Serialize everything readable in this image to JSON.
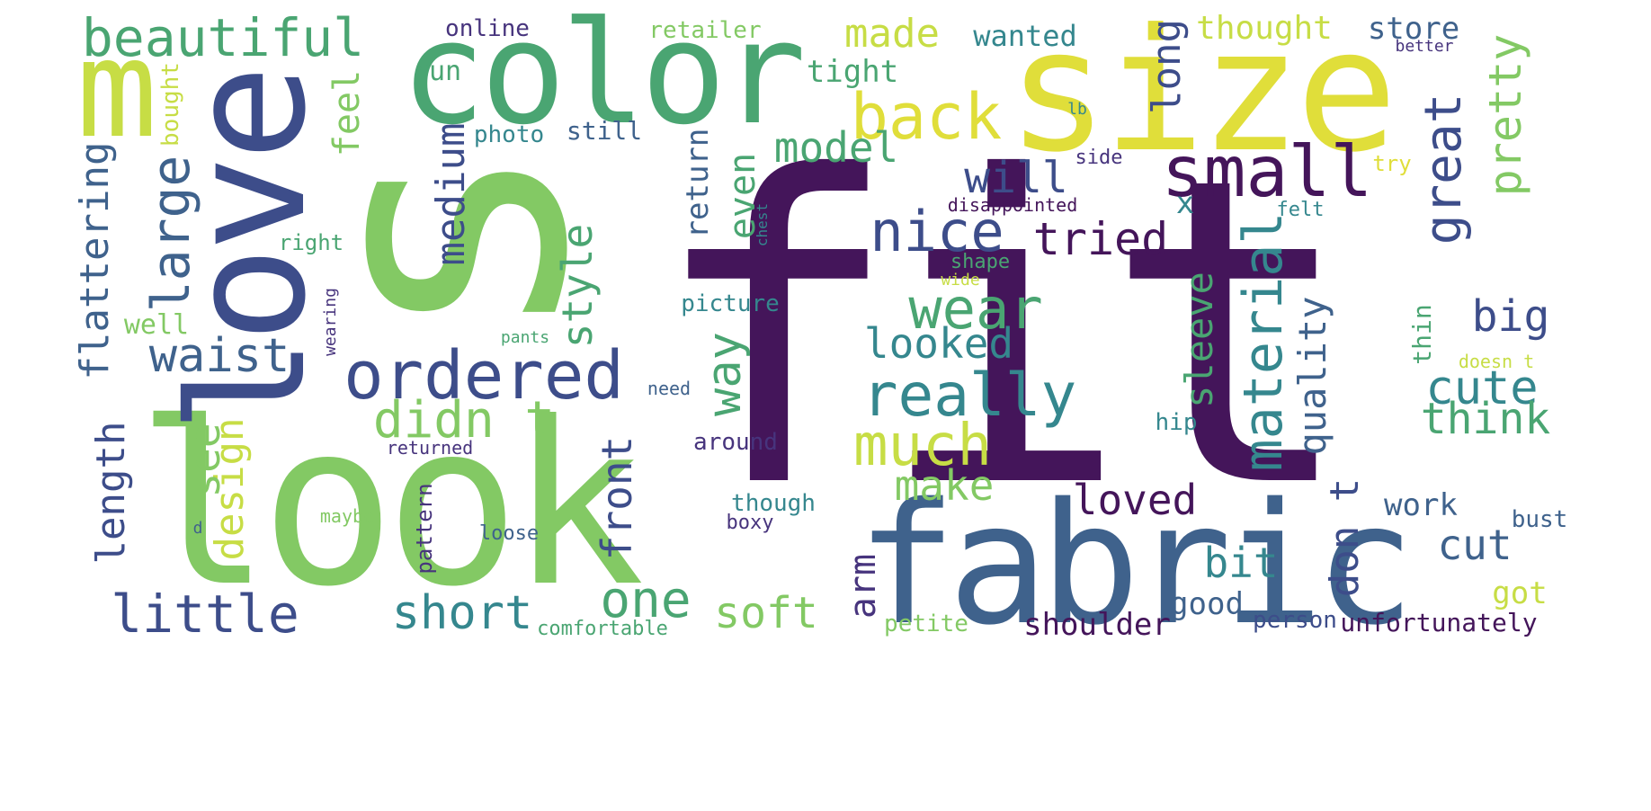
{
  "colors": {
    "dark_purple": "#44155a",
    "indigo": "#3d4d8a",
    "slate_blue": "#3f628c",
    "teal": "#35878e",
    "green": "#4aa572",
    "light_green": "#83c964",
    "yellow_green": "#c7dd45",
    "yellow": "#e0de3a",
    "mid_purple": "#47347d"
  },
  "words": [
    {
      "text": "fit",
      "color": "#44155a"
    },
    {
      "text": "s",
      "color": "#83c964"
    },
    {
      "text": "look",
      "color": "#83c964"
    },
    {
      "text": "size",
      "color": "#e0de3a"
    },
    {
      "text": "love",
      "color": "#3d4d8a"
    },
    {
      "text": "color",
      "color": "#4aa572"
    },
    {
      "text": "fabric",
      "color": "#3f628c"
    },
    {
      "text": "m",
      "color": "#c7dd45"
    },
    {
      "text": "small",
      "color": "#44155a"
    },
    {
      "text": "ordered",
      "color": "#3d4d8a"
    },
    {
      "text": "really",
      "color": "#35878e"
    },
    {
      "text": "back",
      "color": "#e0de3a"
    },
    {
      "text": "beautiful",
      "color": "#4aa572"
    },
    {
      "text": "little",
      "color": "#3d4d8a"
    },
    {
      "text": "much",
      "color": "#c7dd45"
    },
    {
      "text": "nice",
      "color": "#3d4d8a"
    },
    {
      "text": "wear",
      "color": "#4aa572"
    },
    {
      "text": "didn t",
      "color": "#83c964"
    },
    {
      "text": "material",
      "color": "#35878e"
    },
    {
      "text": "one",
      "color": "#4aa572"
    },
    {
      "text": "large",
      "color": "#3f628c"
    },
    {
      "text": "will",
      "color": "#3d4d8a"
    },
    {
      "text": "tried",
      "color": "#44155a"
    },
    {
      "text": "short",
      "color": "#35878e"
    },
    {
      "text": "waist",
      "color": "#3f628c"
    },
    {
      "text": "cute",
      "color": "#35878e"
    },
    {
      "text": "soft",
      "color": "#83c964"
    },
    {
      "text": "made",
      "color": "#c7dd45"
    },
    {
      "text": "model",
      "color": "#4aa572"
    },
    {
      "text": "looked",
      "color": "#35878e"
    },
    {
      "text": "great",
      "color": "#3d4d8a"
    },
    {
      "text": "pretty",
      "color": "#83c964"
    },
    {
      "text": "think",
      "color": "#4aa572"
    },
    {
      "text": "big",
      "color": "#3d4d8a"
    },
    {
      "text": "style",
      "color": "#4aa572"
    },
    {
      "text": "way",
      "color": "#4aa572"
    },
    {
      "text": "flattering",
      "color": "#3f628c"
    },
    {
      "text": "medium",
      "color": "#3d4d8a"
    },
    {
      "text": "make",
      "color": "#83c964"
    },
    {
      "text": "loved",
      "color": "#44155a"
    },
    {
      "text": "front",
      "color": "#3d4d8a"
    },
    {
      "text": "length",
      "color": "#3d4d8a"
    },
    {
      "text": "design",
      "color": "#c7dd45"
    },
    {
      "text": "see",
      "color": "#83c964"
    },
    {
      "text": "sleeve",
      "color": "#4aa572"
    },
    {
      "text": "quality",
      "color": "#3f628c"
    },
    {
      "text": "don t",
      "color": "#3d4d8a"
    },
    {
      "text": "bit",
      "color": "#35878e"
    },
    {
      "text": "cut",
      "color": "#3f628c"
    },
    {
      "text": "long",
      "color": "#3d4d8a"
    },
    {
      "text": "arm",
      "color": "#47347d"
    },
    {
      "text": "even",
      "color": "#4aa572"
    },
    {
      "text": "feel",
      "color": "#83c964"
    },
    {
      "text": "shoulder",
      "color": "#44155a"
    },
    {
      "text": "tight",
      "color": "#4aa572"
    },
    {
      "text": "wanted",
      "color": "#35878e"
    },
    {
      "text": "thought",
      "color": "#c7dd45"
    },
    {
      "text": "store",
      "color": "#3f628c"
    },
    {
      "text": "return",
      "color": "#3f628c"
    },
    {
      "text": "work",
      "color": "#3f628c"
    },
    {
      "text": "got",
      "color": "#c7dd45"
    },
    {
      "text": "good",
      "color": "#3f628c"
    },
    {
      "text": "unfortunately",
      "color": "#44155a"
    },
    {
      "text": "x",
      "color": "#35878e"
    },
    {
      "text": "run",
      "color": "#4aa572"
    },
    {
      "text": "bought",
      "color": "#c7dd45"
    },
    {
      "text": "well",
      "color": "#83c964"
    },
    {
      "text": "retailer",
      "color": "#83c964"
    },
    {
      "text": "online",
      "color": "#47347d"
    },
    {
      "text": "still",
      "color": "#3f628c"
    },
    {
      "text": "photo",
      "color": "#35878e"
    },
    {
      "text": "picture",
      "color": "#35878e"
    },
    {
      "text": "though",
      "color": "#35878e"
    },
    {
      "text": "around",
      "color": "#47347d"
    },
    {
      "text": "bust",
      "color": "#3f628c"
    },
    {
      "text": "thin",
      "color": "#4aa572"
    },
    {
      "text": "hip",
      "color": "#35878e"
    },
    {
      "text": "person",
      "color": "#3d4d8a"
    },
    {
      "text": "petite",
      "color": "#83c964"
    },
    {
      "text": "comfortable",
      "color": "#4aa572"
    },
    {
      "text": "pattern",
      "color": "#47347d"
    },
    {
      "text": "loose",
      "color": "#3f628c"
    },
    {
      "text": "boxy",
      "color": "#47347d"
    },
    {
      "text": "right",
      "color": "#4aa572"
    },
    {
      "text": "returned",
      "color": "#47347d"
    },
    {
      "text": "shape",
      "color": "#4aa572"
    },
    {
      "text": "side",
      "color": "#47347d"
    },
    {
      "text": "disappointed",
      "color": "#44155a"
    },
    {
      "text": "felt",
      "color": "#35878e"
    },
    {
      "text": "need",
      "color": "#3f628c"
    },
    {
      "text": "try",
      "color": "#e0de3a"
    },
    {
      "text": "maybe",
      "color": "#83c964"
    },
    {
      "text": "pants",
      "color": "#4aa572"
    },
    {
      "text": "wearing",
      "color": "#47347d"
    },
    {
      "text": "wide",
      "color": "#c7dd45"
    },
    {
      "text": "chest",
      "color": "#35878e"
    },
    {
      "text": "doesn t",
      "color": "#c7dd45"
    },
    {
      "text": "lb",
      "color": "#35878e"
    },
    {
      "text": "better",
      "color": "#47347d"
    },
    {
      "text": "d",
      "color": "#3f628c"
    }
  ]
}
